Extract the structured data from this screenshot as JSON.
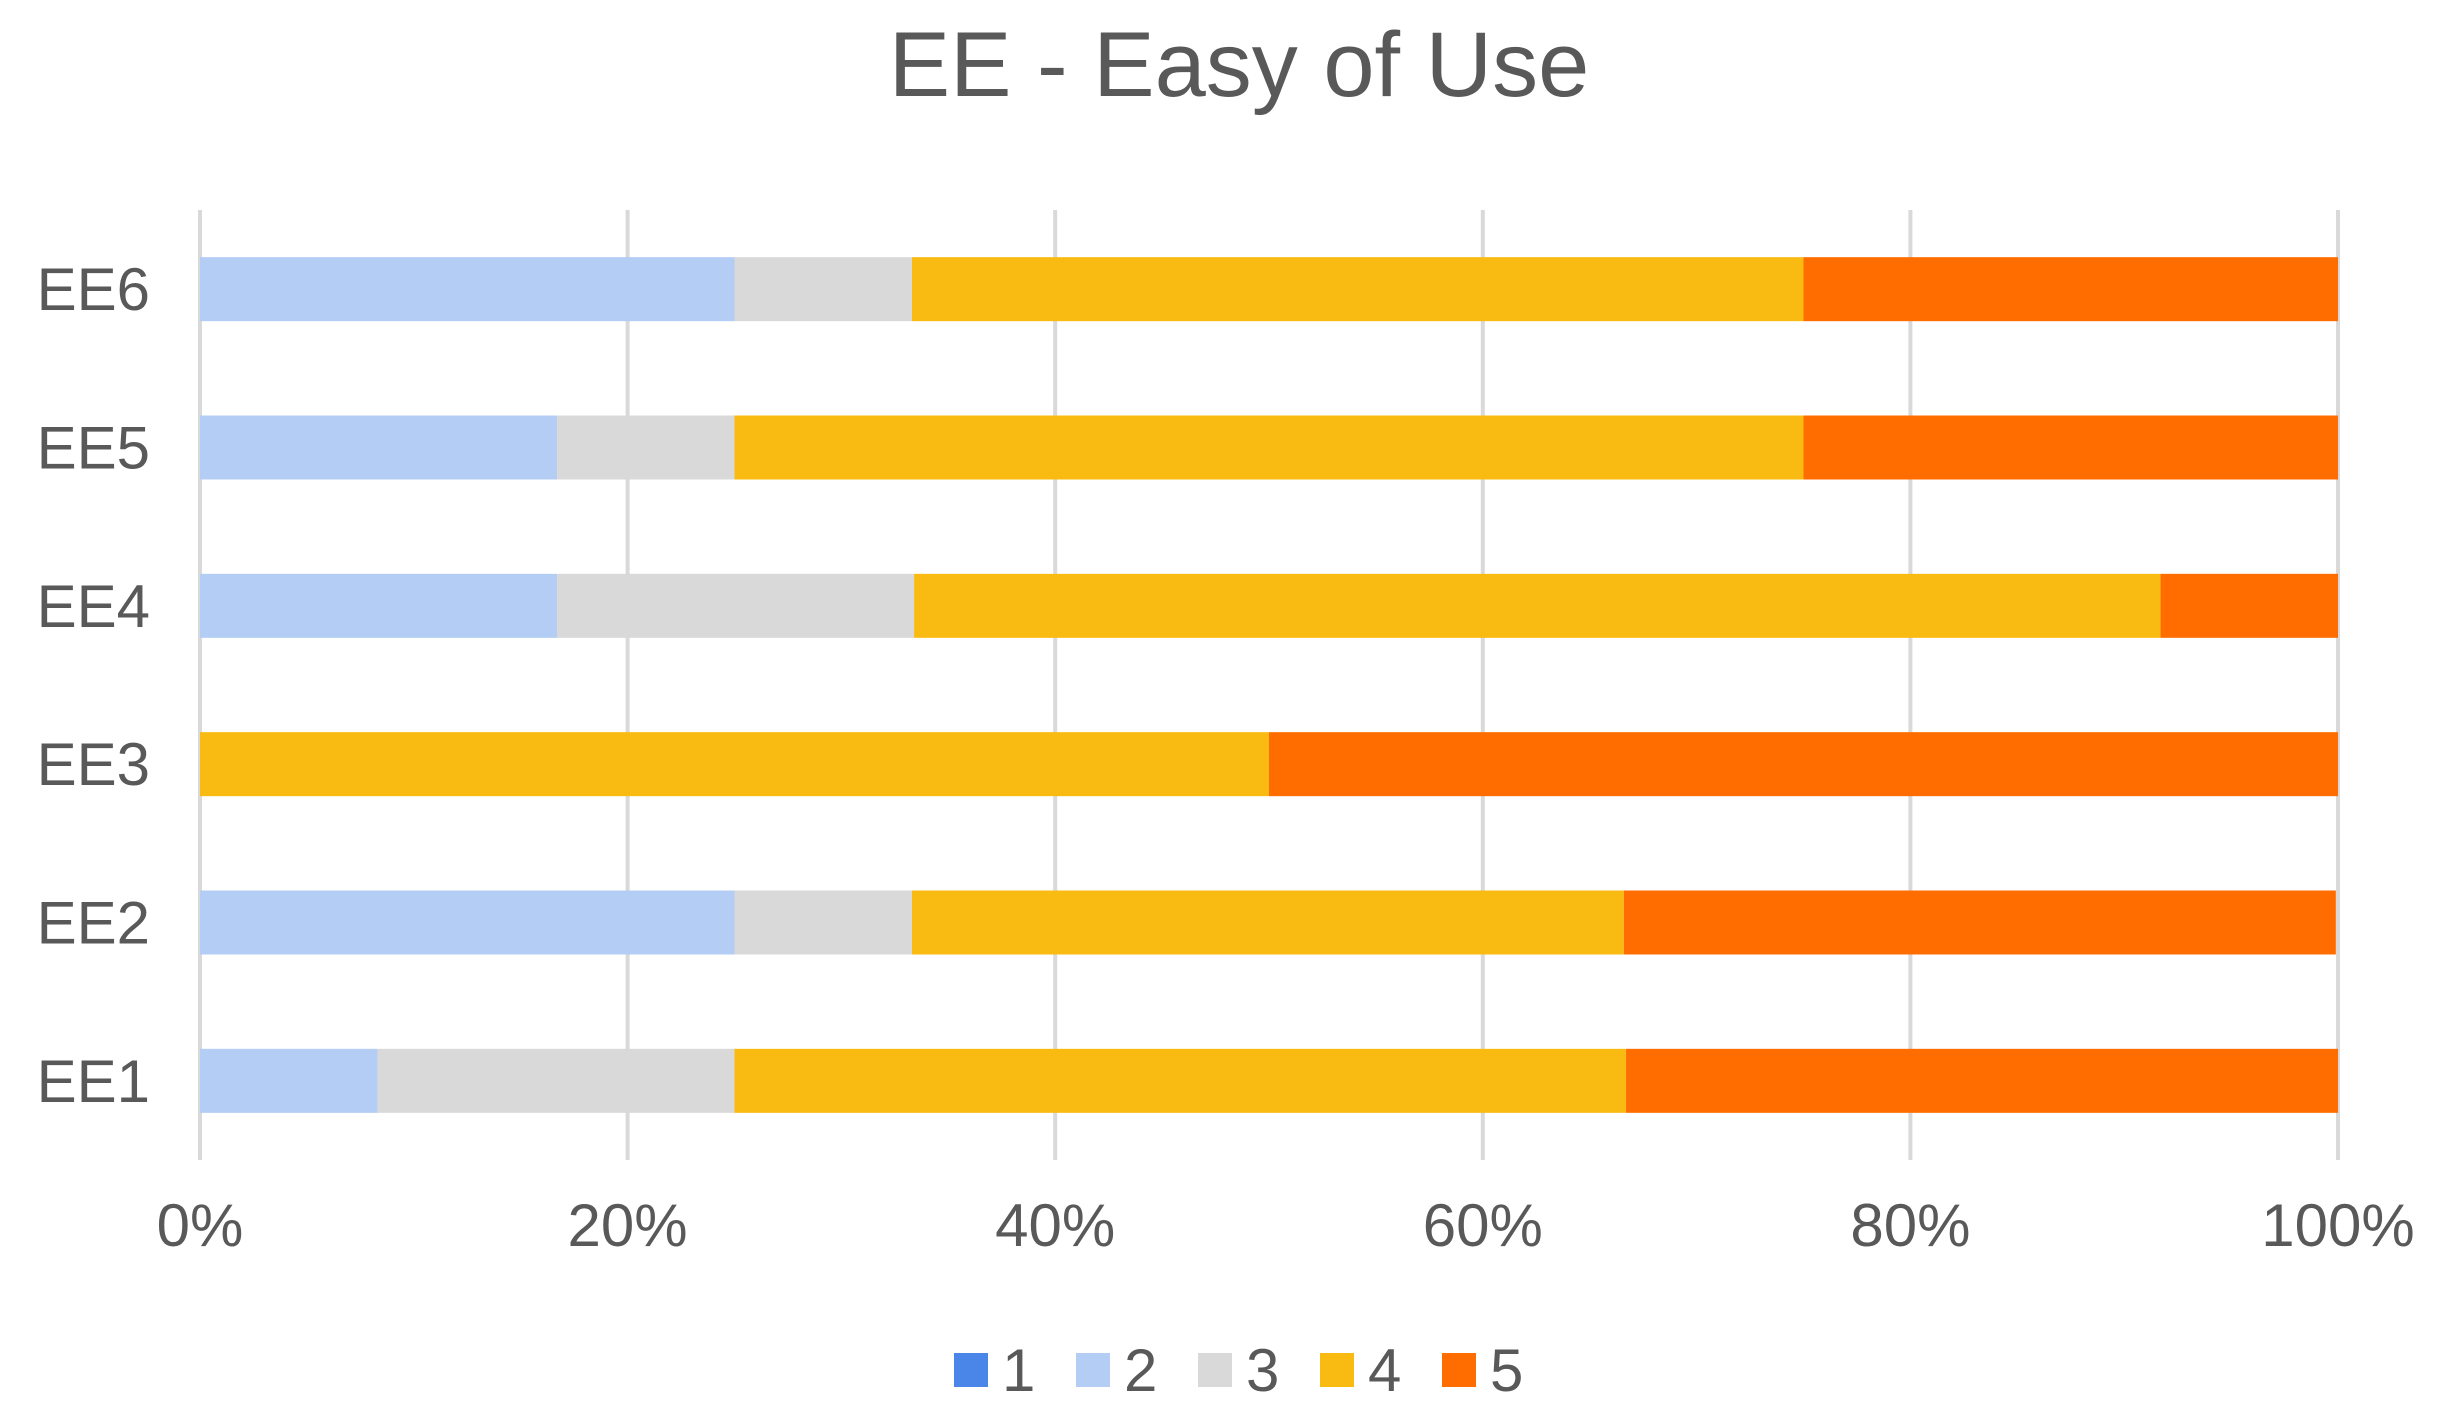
{
  "chart_data": {
    "type": "bar",
    "orientation": "horizontal",
    "stacked": "percent",
    "title": "EE - Easy of Use",
    "xlabel": "",
    "ylabel": "",
    "xlim": [
      0,
      100
    ],
    "x_ticks": [
      "0%",
      "20%",
      "40%",
      "60%",
      "80%",
      "100%"
    ],
    "grid": true,
    "legend_position": "bottom",
    "categories": [
      "EE6",
      "EE5",
      "EE4",
      "EE3",
      "EE2",
      "EE1"
    ],
    "series": [
      {
        "name": "1",
        "color": "#4a86e8",
        "values": [
          0,
          0,
          0,
          0,
          0,
          0
        ]
      },
      {
        "name": "2",
        "color": "#b4cdf5",
        "values": [
          25,
          16.7,
          16.7,
          0,
          25,
          8.3
        ]
      },
      {
        "name": "3",
        "color": "#d9d9d9",
        "values": [
          8.3,
          8.3,
          16.7,
          0,
          8.3,
          16.7
        ]
      },
      {
        "name": "4",
        "color": "#f9bb11",
        "values": [
          41.7,
          50,
          58.3,
          50,
          33.3,
          41.7
        ]
      },
      {
        "name": "5",
        "color": "#ff6d00",
        "values": [
          25,
          25,
          8.3,
          50,
          33.3,
          33.3
        ]
      }
    ]
  }
}
